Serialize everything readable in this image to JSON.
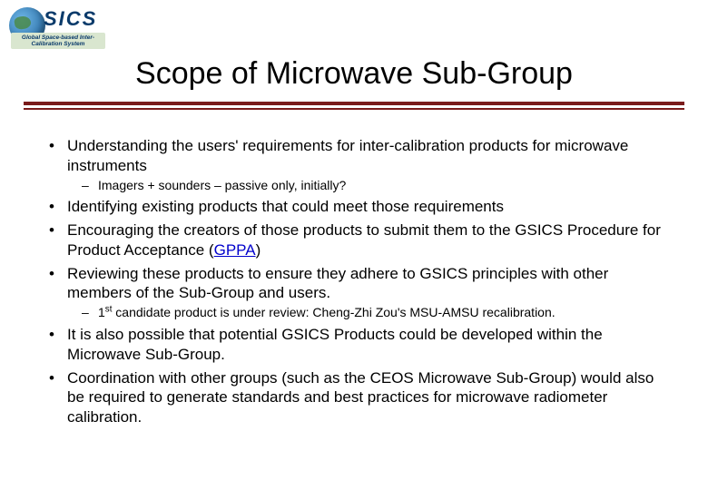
{
  "logo": {
    "main": "SICS",
    "sub": "Global Space-based Inter-Calibration System"
  },
  "title": "Scope of Microwave Sub-Group",
  "colors": {
    "rule": "#7a1b1b",
    "link": "#0000cc",
    "text": "#000000",
    "background": "#ffffff"
  },
  "bullets": {
    "b1": "Understanding the users' requirements for inter-calibration products for microwave instruments",
    "b1_sub1": "Imagers + sounders – passive only, initially?",
    "b2": "Identifying existing products that could meet those requirements",
    "b3_pre": "Encouraging  the creators of those products to submit them to the GSICS Procedure for Product Acceptance (",
    "b3_link": "GPPA",
    "b3_post": ")",
    "b4": "Reviewing these products to ensure they adhere to GSICS principles with other members of the Sub-Group and users.",
    "b4_sub1_pre": "1",
    "b4_sub1_sup": "st",
    "b4_sub1_post": " candidate product is under review: Cheng-Zhi Zou's MSU-AMSU recalibration.",
    "b5": "It is also possible that potential GSICS Products could be developed within the Microwave Sub-Group.",
    "b6": "Coordination with other groups (such as the CEOS Microwave Sub-Group) would also be required to generate standards and best practices for microwave radiometer calibration."
  }
}
